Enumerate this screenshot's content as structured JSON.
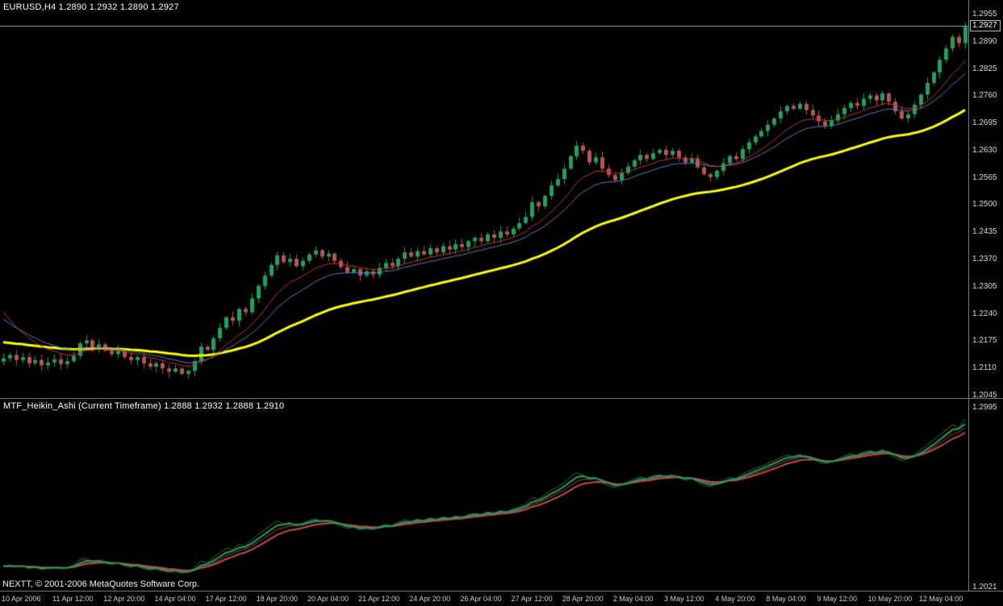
{
  "titles": {
    "main": "EURUSD,H4  1.2890 1.2932 1.2890 1.2927",
    "indicator": "MTF_Heikin_Ashi (Current Timeframe) 1.2888 1.2932 1.2888 1.2910"
  },
  "price_tag": "1.2927",
  "status_bar": {
    "text": "NEXTT, © 2001-2006 MetaQuotes Software Corp."
  },
  "time_axis": {
    "labels": [
      "10 Apr 2006",
      "11 Apr 12:00",
      "12 Apr 20:00",
      "14 Apr 04:00",
      "17 Apr 12:00",
      "18 Apr 20:00",
      "20 Apr 04:00",
      "21 Apr 12:00",
      "24 Apr 20:00",
      "26 Apr 04:00",
      "27 Apr 12:00",
      "28 Apr 20:00",
      "2 May 04:00",
      "3 May 12:00",
      "4 May 20:00",
      "8 May 04:00",
      "9 May 12:00",
      "10 May 20:00",
      "12 May 04:00"
    ]
  },
  "colors": {
    "background": "#000000",
    "bull": "#269e5c",
    "bear": "#b25757",
    "ma_slow": "#ffff00",
    "ma_red": "#c0392b",
    "ma_blue": "#5b7fbe",
    "bid_line": "#9aa6b4",
    "axis_text": "#d8d8d8"
  },
  "chart_data": [
    {
      "type": "candlestick",
      "title": "EURUSD,H4",
      "symbol": "EURUSD",
      "timeframe": "H4",
      "ohlc_display": {
        "open": "1.2890",
        "high": "1.2932",
        "low": "1.2890",
        "close": "1.2927"
      },
      "ylim": [
        1.2037,
        1.2988
      ],
      "y_ticks": [
        1.2955,
        1.289,
        1.2825,
        1.276,
        1.2695,
        1.263,
        1.2565,
        1.25,
        1.2435,
        1.237,
        1.2305,
        1.224,
        1.2175,
        1.211,
        1.2045
      ],
      "current_price": 1.2927,
      "up_color": "#269e5c",
      "down_color": "#b25757",
      "closes": [
        1.2132,
        1.214,
        1.2128,
        1.2135,
        1.212,
        1.2128,
        1.2115,
        1.2122,
        1.213,
        1.2118,
        1.2125,
        1.2138,
        1.2168,
        1.2175,
        1.2158,
        1.2165,
        1.215,
        1.2142,
        1.215,
        1.2135,
        1.2128,
        1.2135,
        1.212,
        1.2112,
        1.212,
        1.2108,
        1.21,
        1.2108,
        1.2095,
        1.2102,
        1.2125,
        1.216,
        1.2152,
        1.218,
        1.2205,
        1.223,
        1.2222,
        1.225,
        1.2242,
        1.2275,
        1.2305,
        1.233,
        1.2355,
        1.2378,
        1.2362,
        1.237,
        1.2352,
        1.2365,
        1.238,
        1.239,
        1.2375,
        1.2382,
        1.2365,
        1.235,
        1.2338,
        1.2345,
        1.233,
        1.234,
        1.2332,
        1.2348,
        1.236,
        1.2352,
        1.237,
        1.2385,
        1.2375,
        1.2388,
        1.238,
        1.2395,
        1.2385,
        1.24,
        1.2392,
        1.2405,
        1.2398,
        1.2412,
        1.242,
        1.2412,
        1.2428,
        1.242,
        1.2435,
        1.2428,
        1.2442,
        1.2455,
        1.247,
        1.2505,
        1.2495,
        1.252,
        1.2545,
        1.256,
        1.2585,
        1.2615,
        1.264,
        1.2628,
        1.26,
        1.2612,
        1.2585,
        1.257,
        1.2558,
        1.2575,
        1.259,
        1.2605,
        1.2618,
        1.2608,
        1.2622,
        1.263,
        1.2618,
        1.2628,
        1.2612,
        1.26,
        1.261,
        1.2588,
        1.2572,
        1.2565,
        1.258,
        1.2598,
        1.2615,
        1.2608,
        1.2632,
        1.2648,
        1.2662,
        1.2675,
        1.269,
        1.2705,
        1.2722,
        1.2735,
        1.2728,
        1.274,
        1.2725,
        1.2712,
        1.2698,
        1.2688,
        1.27,
        1.2715,
        1.273,
        1.2742,
        1.2735,
        1.2752,
        1.276,
        1.2748,
        1.2765,
        1.2745,
        1.2722,
        1.2705,
        1.2715,
        1.2738,
        1.2762,
        1.279,
        1.2815,
        1.2845,
        1.2872,
        1.29,
        1.2885,
        1.2927
      ],
      "overlays": [
        {
          "name": "ma-slow-yellow",
          "color": "#ffff00",
          "period": 45,
          "width": 3,
          "seed": 1.2172
        },
        {
          "name": "ma-medium-blue",
          "color": "#5b7fbe",
          "period": 16,
          "width": 1,
          "seed": 1.2238
        },
        {
          "name": "ma-fast-red",
          "color": "#c0392b",
          "period": 10,
          "width": 1,
          "seed": 1.2268
        }
      ]
    },
    {
      "type": "line",
      "title": "MTF_Heikin_Ashi (Current Timeframe)",
      "values_display": "1.2888 1.2932 1.2888 1.2910",
      "ylim": [
        1.2,
        1.304
      ],
      "y_ticks": [
        1.2995,
        1.2021
      ],
      "source": "chart_data[0].closes",
      "series": [
        {
          "name": "heikin-ashi-red",
          "color": "#c05050",
          "period": 8,
          "width": 2
        },
        {
          "name": "heikin-ashi-red-thin",
          "color": "#a54848",
          "period": 5,
          "width": 1
        },
        {
          "name": "heikin-ashi-green",
          "color": "#2e9e5c",
          "period": 3,
          "width": 2
        },
        {
          "name": "heikin-ashi-green-thin",
          "color": "#237a47",
          "period": 1,
          "width": 1
        }
      ]
    }
  ]
}
